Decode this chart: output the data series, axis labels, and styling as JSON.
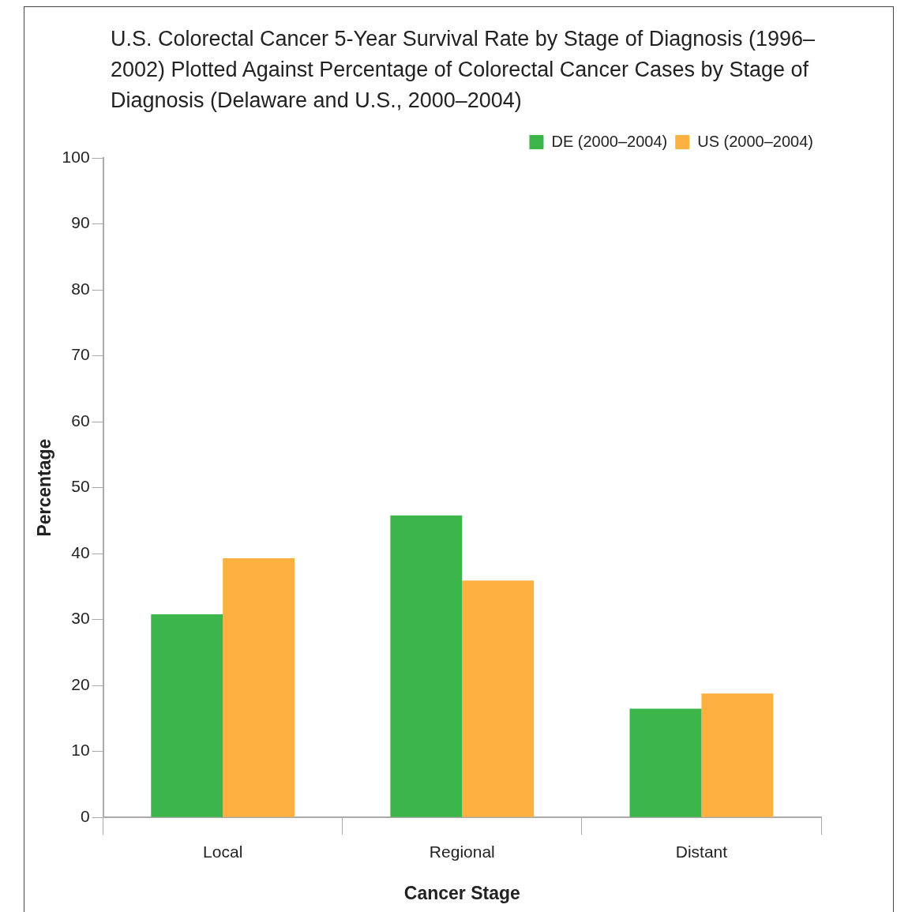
{
  "chart_data": {
    "type": "bar",
    "title": "U.S. Colorectal Cancer 5-Year Survival Rate by Stage of Diagnosis (1996–2002) Plotted Against Percentage of Colorectal Cancer Cases by Stage of Diagnosis (Delaware and U.S., 2000–2004)",
    "xlabel": "Cancer Stage",
    "ylabel": "Percentage",
    "categories": [
      "Local",
      "Regional",
      "Distant"
    ],
    "series": [
      {
        "name": "DE (2000–2004)",
        "color": "#3cb64b",
        "values": [
          30.8,
          45.8,
          16.5
        ]
      },
      {
        "name": "US (2000–2004)",
        "color": "#fbb040",
        "values": [
          39.3,
          35.9,
          18.8
        ]
      }
    ],
    "ylim": [
      0,
      100
    ],
    "yticks": [
      0,
      10,
      20,
      30,
      40,
      50,
      60,
      70,
      80,
      90,
      100
    ],
    "grid": false,
    "legend": "top right"
  }
}
